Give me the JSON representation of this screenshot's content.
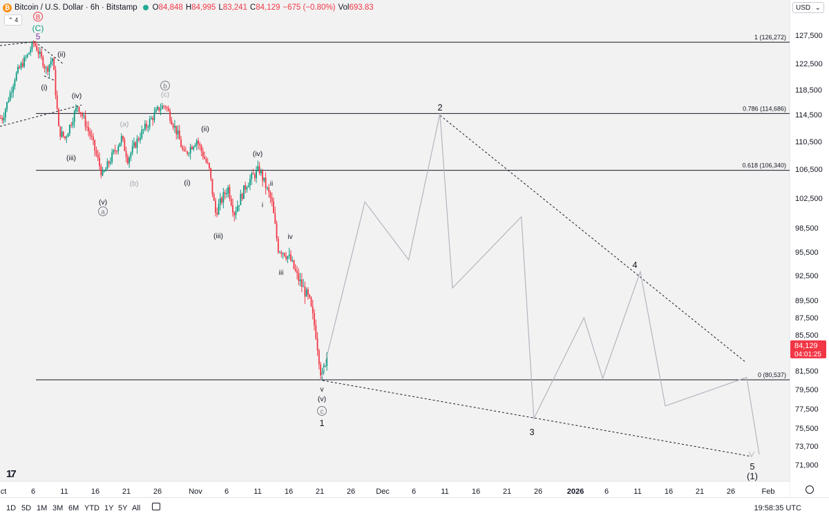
{
  "header": {
    "symbol_title": "Bitcoin / U.S. Dollar · 6h · Bitstamp",
    "open_label": "O",
    "open": "84,848",
    "high_label": "H",
    "high": "84,995",
    "low_label": "L",
    "low": "83,241",
    "close_label": "C",
    "close": "84,129",
    "change": "−675 (−0.80%)",
    "vol_label": "Vol",
    "vol": "693.83",
    "indicator_count": "4"
  },
  "currency": "USD",
  "price_axis_ticks": [
    "127,500",
    "122,500",
    "118,500",
    "114,500",
    "110,500",
    "106,500",
    "102,500",
    "98,500",
    "95,500",
    "92,500",
    "89,500",
    "87,500",
    "85,500",
    "81,500",
    "79,500",
    "77,500",
    "75,500",
    "73,700",
    "71,900"
  ],
  "time_axis_ticks": [
    "ct",
    "6",
    "11",
    "16",
    "21",
    "26",
    "Nov",
    "6",
    "11",
    "16",
    "21",
    "26",
    "Dec",
    "6",
    "11",
    "16",
    "21",
    "26",
    "2026",
    "6",
    "11",
    "16",
    "21",
    "26",
    "Feb"
  ],
  "last_price": {
    "value": "84,129",
    "countdown": "04:01:25"
  },
  "fib_levels": [
    {
      "label": "1 (126,272)",
      "price": 126272
    },
    {
      "label": "0.786 (114,686)",
      "price": 114686
    },
    {
      "label": "0.618 (106,340)",
      "price": 106340
    },
    {
      "label": "0 (80,537)",
      "price": 80537
    }
  ],
  "wave_labels": {
    "top_b": "B",
    "top_c": "(C)",
    "top_5": "5",
    "i1": "(i)",
    "ii1": "(ii)",
    "iii1": "(iii)",
    "iv1": "(iv)",
    "v1": "(v)",
    "a_circ": "a",
    "a_paren": "(a)",
    "b_paren": "(b)",
    "b_circ": "b",
    "c_paren": "(c)",
    "i2": "(i)",
    "ii2": "(ii)",
    "iii2": "(iii)",
    "iv2": "(iv)",
    "i_small": "i",
    "ii_small": "ii",
    "iii_small": "iii",
    "iv_small": "iv",
    "v_small": "v",
    "v2": "(v)",
    "c_circ": "c",
    "w1": "1",
    "w2": "2",
    "w3": "3",
    "w4": "4",
    "w5": "5",
    "w1_big": "(1)"
  },
  "range_buttons": [
    "1D",
    "5D",
    "1M",
    "3M",
    "6M",
    "YTD",
    "1Y",
    "5Y",
    "All"
  ],
  "clock": "19:58:35 UTC",
  "colors": {
    "up": "#089981",
    "down": "#f23645",
    "projection": "#b2b5be",
    "fib": "#131722"
  },
  "chart_data": {
    "type": "candlestick",
    "title": "Bitcoin / U.S. Dollar · 6h · Bitstamp",
    "xlabel": "",
    "ylabel": "",
    "ylim": [
      70900,
      130500
    ],
    "candles_ohlc_anchor_path": [
      [
        "Oct 1",
        114000
      ],
      [
        "Oct 3",
        120500
      ],
      [
        "Oct 5",
        124000
      ],
      [
        "Oct 6",
        126200
      ],
      [
        "Oct 8",
        121500
      ],
      [
        "Oct 9",
        123500
      ],
      [
        "Oct 10",
        112000
      ],
      [
        "Oct 11",
        111000
      ],
      [
        "Oct 13",
        116000
      ],
      [
        "Oct 15",
        111500
      ],
      [
        "Oct 17",
        105500
      ],
      [
        "Oct 18",
        107500
      ],
      [
        "Oct 20",
        111000
      ],
      [
        "Oct 21",
        108000
      ],
      [
        "Oct 23",
        111500
      ],
      [
        "Oct 26",
        115500
      ],
      [
        "Oct 27",
        116000
      ],
      [
        "Oct 29",
        111500
      ],
      [
        "Oct 30",
        108500
      ],
      [
        "Nov 1",
        110800
      ],
      [
        "Nov 3",
        106500
      ],
      [
        "Nov 4",
        100500
      ],
      [
        "Nov 6",
        104000
      ],
      [
        "Nov 7",
        100500
      ],
      [
        "Nov 9",
        104500
      ],
      [
        "Nov 11",
        106500
      ],
      [
        "Nov 13",
        102000
      ],
      [
        "Nov 14",
        96000
      ],
      [
        "Nov 15",
        95500
      ],
      [
        "Nov 16",
        94500
      ],
      [
        "Nov 17",
        92500
      ],
      [
        "Nov 18",
        91000
      ],
      [
        "Nov 19",
        89500
      ],
      [
        "Nov 20",
        86000
      ],
      [
        "Nov 21",
        80537
      ],
      [
        "Nov 22",
        84129
      ]
    ],
    "projection_path": [
      [
        "Nov 21",
        80537
      ],
      [
        "Nov 28",
        102000
      ],
      [
        "Dec 5",
        94500
      ],
      [
        "Dec 10",
        114686
      ],
      [
        "Dec 12",
        91000
      ],
      [
        "Dec 23",
        100000
      ],
      [
        "Dec 25",
        76500
      ],
      [
        "Jan 2",
        87500
      ],
      [
        "Jan 5",
        80700
      ],
      [
        "Jan 11",
        93000
      ],
      [
        "Jan 15",
        77800
      ],
      [
        "Jan 28",
        80800
      ],
      [
        "Jan 30",
        72900
      ]
    ]
  }
}
